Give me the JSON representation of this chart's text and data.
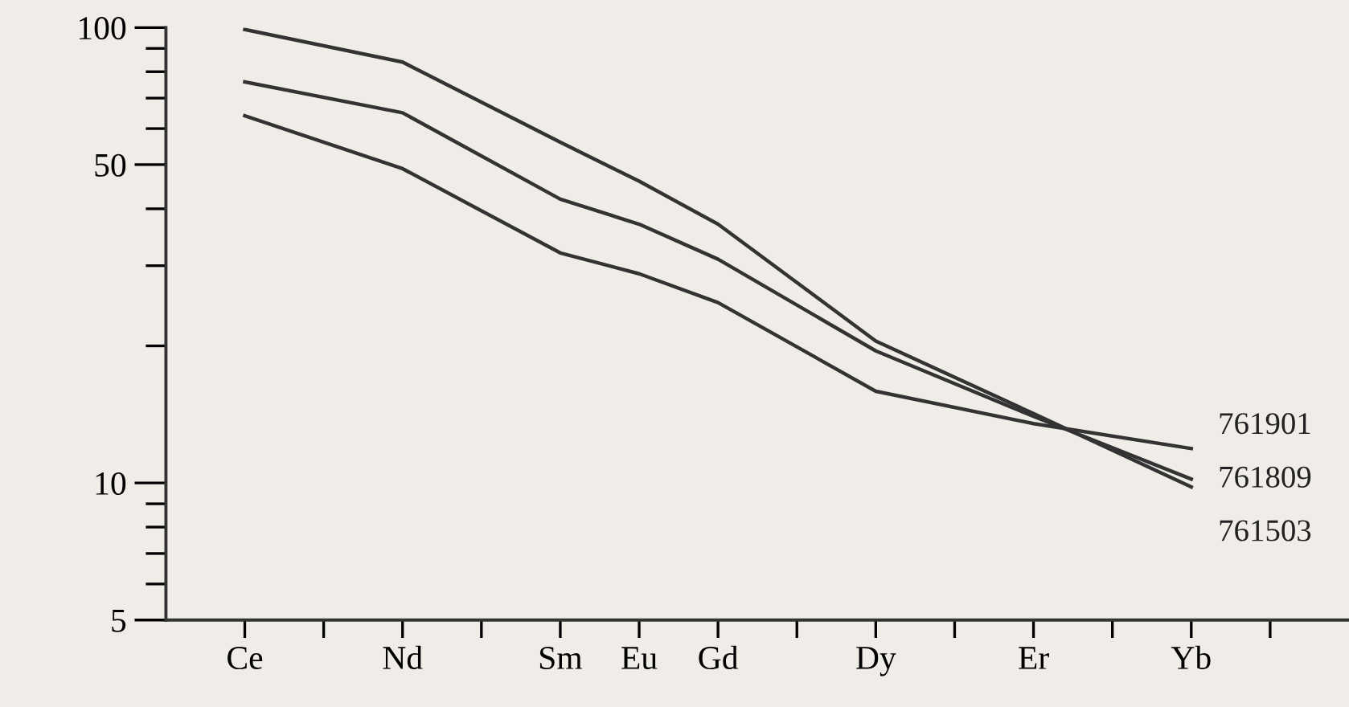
{
  "chart_data": {
    "type": "line",
    "categories": [
      "Ce",
      null,
      "Nd",
      null,
      "Sm",
      "Eu",
      "Gd",
      null,
      "Dy",
      null,
      "Er",
      null,
      "Yb",
      null
    ],
    "series": [
      {
        "name": "761901",
        "color": "#333333",
        "values": [
          64,
          null,
          49,
          null,
          32,
          28.8,
          24.9,
          null,
          15.9,
          null,
          13.5,
          null,
          11.9,
          null
        ]
      },
      {
        "name": "761809",
        "color": "#333333",
        "values": [
          76,
          null,
          65,
          null,
          42,
          37,
          31,
          null,
          19.5,
          null,
          14.0,
          null,
          10.2,
          null
        ]
      },
      {
        "name": "761503",
        "color": "#333333",
        "values": [
          99,
          null,
          84,
          null,
          56,
          46,
          37,
          null,
          20.5,
          null,
          14.2,
          null,
          9.8,
          null
        ]
      }
    ],
    "log": "y",
    "ylim": [
      5,
      100
    ],
    "yticks": [
      5,
      {
        "value": 6,
        "label": null
      },
      {
        "value": 7,
        "label": null
      },
      {
        "value": 8,
        "label": null
      },
      {
        "value": 9,
        "label": null
      },
      10,
      {
        "value": 20,
        "label": null
      },
      {
        "value": 30,
        "label": null
      },
      {
        "value": 40,
        "label": null
      },
      50,
      {
        "value": 60,
        "label": null
      },
      {
        "value": 70,
        "label": null
      },
      {
        "value": 80,
        "label": null
      },
      {
        "value": 90,
        "label": null
      },
      100
    ],
    "grid": false,
    "legend": false,
    "marker": "none",
    "line_style": "solid"
  }
}
